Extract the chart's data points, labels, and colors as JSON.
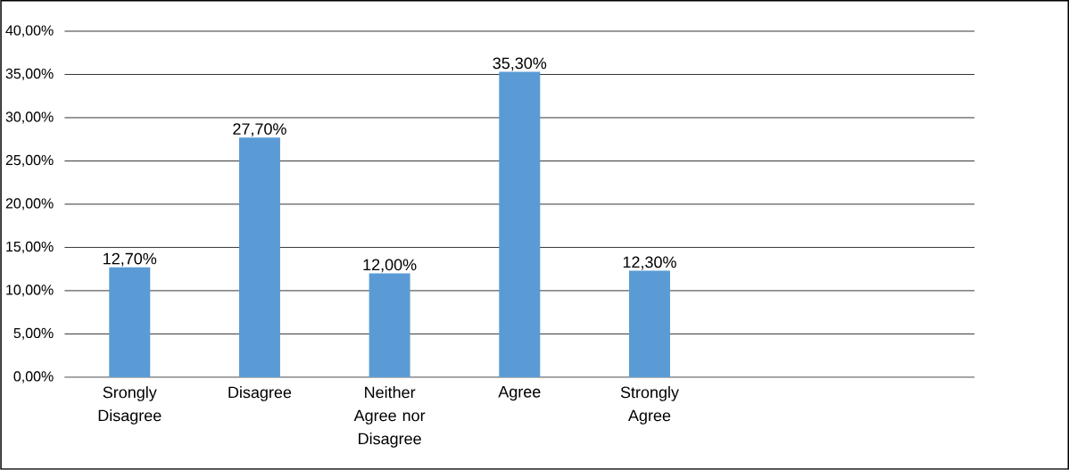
{
  "chart_data": {
    "type": "bar",
    "categories": [
      "Srongly Disagree",
      "Disagree",
      "Neither Agree nor Disagree",
      "Agree",
      "Strongly Agree",
      null,
      null
    ],
    "values": [
      12.7,
      27.7,
      12.0,
      35.3,
      12.3,
      null,
      null
    ],
    "value_labels": [
      "12,70%",
      "27,70%",
      "12,00%",
      "35,30%",
      "12,30%",
      null,
      null
    ],
    "color": "#5b9bd5",
    "ylim": [
      0,
      40
    ],
    "yticks": [
      {
        "value": 0,
        "label": "0,00%"
      },
      {
        "value": 5,
        "label": "5,00%"
      },
      {
        "value": 10,
        "label": "10,00%"
      },
      {
        "value": 15,
        "label": "15,00%"
      },
      {
        "value": 20,
        "label": "20,00%"
      },
      {
        "value": 25,
        "label": "25,00%"
      },
      {
        "value": 30,
        "label": "30,00%"
      },
      {
        "value": 35,
        "label": "35,00%"
      },
      {
        "value": 40,
        "label": "40,00%"
      }
    ],
    "grid": "y"
  }
}
